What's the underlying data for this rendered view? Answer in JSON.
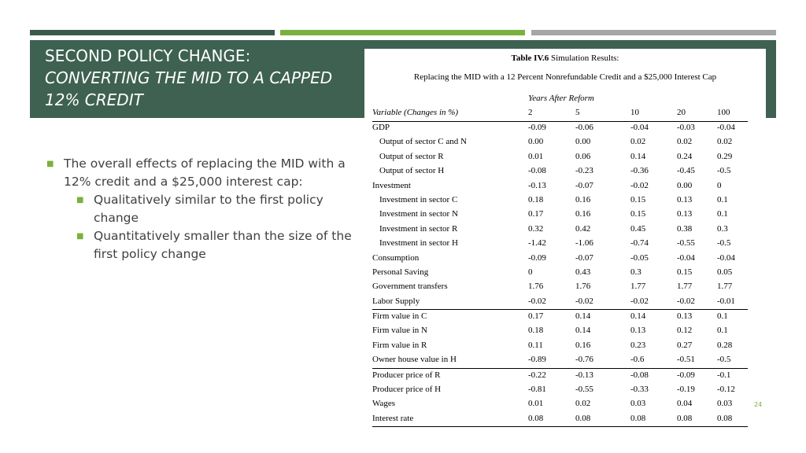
{
  "slide": {
    "title_line1": "SECOND POLICY CHANGE:",
    "title_line2": "CONVERTING THE MID TO A CAPPED 12% CREDIT",
    "page_number": "24",
    "colors": {
      "dark_green": "#3e6152",
      "light_green": "#7ab03e",
      "gray": "#a6a6a6",
      "body_text": "#404040"
    }
  },
  "bullets": {
    "main": "The overall effects of replacing the MID with a 12% credit and a $25,000 interest cap:",
    "sub1": "Qualitatively similar to the first policy change",
    "sub2": "Quantitatively smaller than the size of the first policy change"
  },
  "table": {
    "label": "Table IV.6",
    "title_rest": " Simulation Results:",
    "subtitle": "Replacing the MID with a 12 Percent Nonrefundable Credit and a $25,000 Interest Cap",
    "column_group": "Years After Reform",
    "headers": [
      "Variable (Changes in %)",
      "2",
      "5",
      "10",
      "20",
      "100"
    ],
    "rows": [
      {
        "label": "GDP",
        "values": [
          "-0.09",
          "-0.06",
          "-0.04",
          "-0.03",
          "-0.04"
        ]
      },
      {
        "label": "Output of sector C and N",
        "values": [
          "0.00",
          "0.00",
          "0.02",
          "0.02",
          "0.02"
        ]
      },
      {
        "label": "Output of sector R",
        "values": [
          "0.01",
          "0.06",
          "0.14",
          "0.24",
          "0.29"
        ]
      },
      {
        "label": "Output of sector H",
        "values": [
          "-0.08",
          "-0.23",
          "-0.36",
          "-0.45",
          "-0.5"
        ]
      },
      {
        "label": "Investment",
        "values": [
          "-0.13",
          "-0.07",
          "-0.02",
          "0.00",
          "0"
        ]
      },
      {
        "label": "Investment in sector C",
        "values": [
          "0.18",
          "0.16",
          "0.15",
          "0.13",
          "0.1"
        ]
      },
      {
        "label": "Investment in sector N",
        "values": [
          "0.17",
          "0.16",
          "0.15",
          "0.13",
          "0.1"
        ]
      },
      {
        "label": "Investment in sector R",
        "values": [
          "0.32",
          "0.42",
          "0.45",
          "0.38",
          "0.3"
        ]
      },
      {
        "label": "Investment in sector H",
        "values": [
          "-1.42",
          "-1.06",
          "-0.74",
          "-0.55",
          "-0.5"
        ]
      },
      {
        "label": "Consumption",
        "values": [
          "-0.09",
          "-0.07",
          "-0.05",
          "-0.04",
          "-0.04"
        ]
      },
      {
        "label": "Personal Saving",
        "values": [
          "0",
          "0.43",
          "0.3",
          "0.15",
          "0.05"
        ]
      },
      {
        "label": "Government transfers",
        "values": [
          "1.76",
          "1.76",
          "1.77",
          "1.77",
          "1.77"
        ]
      },
      {
        "label": "Labor Supply",
        "values": [
          "-0.02",
          "-0.02",
          "-0.02",
          "-0.02",
          "-0.01"
        ]
      },
      {
        "label": "Firm value in C",
        "values": [
          "0.17",
          "0.14",
          "0.14",
          "0.13",
          "0.1"
        ]
      },
      {
        "label": "Firm value in N",
        "values": [
          "0.18",
          "0.14",
          "0.13",
          "0.12",
          "0.1"
        ]
      },
      {
        "label": "Firm value in R",
        "values": [
          "0.11",
          "0.16",
          "0.23",
          "0.27",
          "0.28"
        ]
      },
      {
        "label": "Owner house value in H",
        "values": [
          "-0.89",
          "-0.76",
          "-0.6",
          "-0.51",
          "-0.5"
        ]
      },
      {
        "label": "Producer price of R",
        "values": [
          "-0.22",
          "-0.13",
          "-0.08",
          "-0.09",
          "-0.1"
        ]
      },
      {
        "label": "Producer price of H",
        "values": [
          "-0.81",
          "-0.55",
          "-0.33",
          "-0.19",
          "-0.12"
        ]
      },
      {
        "label": "Wages",
        "values": [
          "0.01",
          "0.02",
          "0.03",
          "0.04",
          "0.03"
        ]
      },
      {
        "label": "Interest rate",
        "values": [
          "0.08",
          "0.08",
          "0.08",
          "0.08",
          "0.08"
        ]
      }
    ]
  }
}
